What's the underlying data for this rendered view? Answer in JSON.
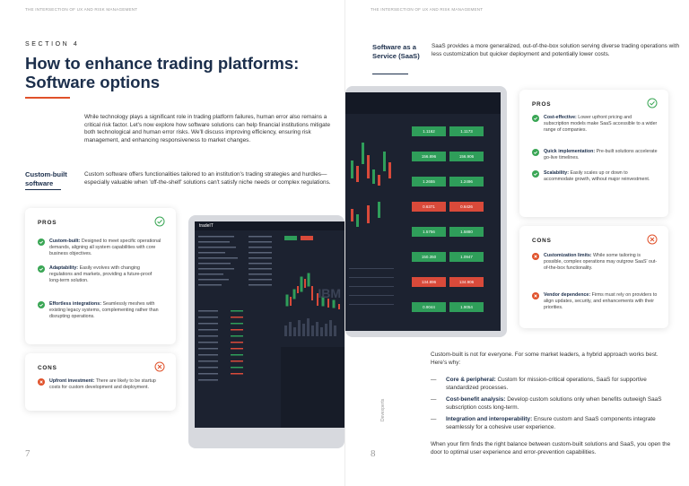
{
  "running_head_left": "THE INTERSECTION OF UX AND RISK MANAGEMENT",
  "running_head_right": "THE INTERSECTION OF UX AND RISK MANAGEMENT",
  "section_label": "SECTION 4",
  "title": "How to enhance trading platforms: Software options",
  "intro": "While technology plays a significant role in trading platform failures, human error also remains a critical risk factor. Let's now explore how software solutions can help financial institutions mitigate both technological and human error risks. We'll discuss improving efficiency, ensuring risk management, and enhancing responsiveness to market changes.",
  "custom": {
    "heading": "Custom-built software",
    "text": "Custom software offers functionalities tailored to an institution's trading strategies and hurdles—especially valuable when 'off-the-shelf' solutions can't satisfy niche needs or complex regulations.",
    "pros_title": "PROS",
    "pros": [
      {
        "label": "Custom-built:",
        "text": "Designed to meet specific operational demands, aligning all system capabilities with core business objectives."
      },
      {
        "label": "Adaptability:",
        "text": "Easily evolves with changing regulations and markets, providing a future-proof long-term solution."
      },
      {
        "label": "Effortless integrations:",
        "text": "Seamlessly meshes with existing legacy systems, complementing rather than disrupting operations."
      }
    ],
    "cons_title": "CONS",
    "cons": [
      {
        "label": "Upfront investment:",
        "text": "There are likely to be startup costs for custom development and deployment."
      }
    ]
  },
  "saas": {
    "heading": "Software as a Service (SaaS)",
    "text": "SaaS provides a more generalized, out-of-the-box solution serving diverse trading operations with less customization but quicker deployment and potentially lower costs.",
    "pros_title": "PROS",
    "pros": [
      {
        "label": "Cost-effective:",
        "text": "Lower upfront pricing and subscription models make SaaS accessible to a wider range of companies."
      },
      {
        "label": "Quick implementation:",
        "text": "Pre-built solutions accelerate go-live timelines."
      },
      {
        "label": "Scalability:",
        "text": "Easily scales up or down to accommodate growth, without major reinvestment."
      }
    ],
    "cons_title": "CONS",
    "cons": [
      {
        "label": "Customization limits:",
        "text": "While some tailoring is possible, complex operations may outgrow SaaS' out-of-the-box functionality."
      },
      {
        "label": "Vendor dependence:",
        "text": "Firms must rely on providers to align updates, security, and enhancements with their priorities."
      }
    ]
  },
  "hybrid_intro": "Custom-built is not for everyone. For some market leaders, a hybrid approach works best. Here's why:",
  "hybrid_points": [
    {
      "label": "Core & peripheral:",
      "text": "Custom for mission-critical operations, SaaS for supportive standardized processes."
    },
    {
      "label": "Cost-benefit analysis:",
      "text": "Develop custom solutions only when benefits outweigh SaaS subscription costs long-term."
    },
    {
      "label": "Integration and interoperability:",
      "text": "Ensure custom and SaaS components integrate seamlessly for a cohesive user experience."
    }
  ],
  "hybrid_outro": "When your firm finds the right balance between custom-built solutions and SaaS, you open the door to optimal user experience and error-prevention capabilities.",
  "page_left": "7",
  "page_right": "8",
  "vertical_brand": "Devexperts",
  "screens": {
    "left_logo": "tradeIT",
    "left_symbol": "IBM",
    "right_prices": [
      [
        "1.1162",
        "1.1173"
      ],
      [
        "156.896",
        "156.906"
      ],
      [
        "1.2655",
        "1.2496"
      ],
      [
        "0.6371",
        "0.6426"
      ],
      [
        "1.5756",
        "1.5880"
      ],
      [
        "150.350",
        "1.0947"
      ],
      [
        "134.896",
        "134.906"
      ],
      [
        "0.9044",
        "1.9054"
      ]
    ]
  },
  "colors": {
    "accent": "#e0512a",
    "navy": "#1b2e4b",
    "pro": "#3aa655",
    "con": "#e0512a"
  }
}
